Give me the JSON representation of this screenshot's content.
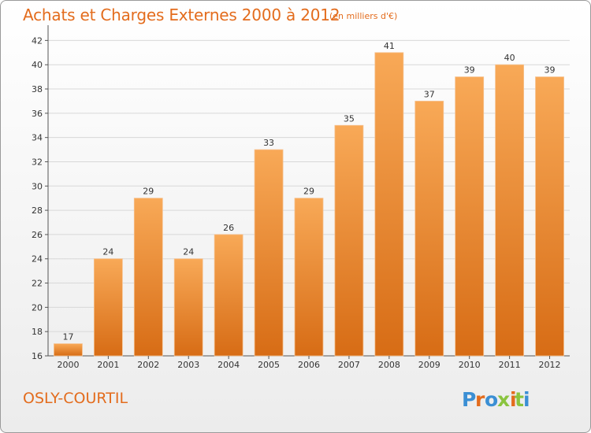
{
  "header": {
    "title": "Achats et Charges Externes 2000 à 2012",
    "subtitle": "(en milliers d'€)"
  },
  "footer": {
    "commune": "OSLY-COURTIL",
    "logo_text": "Proxiti"
  },
  "colors": {
    "title": "#e36c1d",
    "bar_light": "#f8a957",
    "bar_dark": "#d76c15",
    "grid": "#d8d8d8",
    "axis": "#555555",
    "logo": [
      "#3b8fd4",
      "#e36c1d",
      "#3b8fd4",
      "#8ac43f",
      "#e36c1d",
      "#8ac43f",
      "#3b8fd4"
    ]
  },
  "chart_data": {
    "type": "bar",
    "categories": [
      "2000",
      "2001",
      "2002",
      "2003",
      "2004",
      "2005",
      "2006",
      "2007",
      "2008",
      "2009",
      "2010",
      "2011",
      "2012"
    ],
    "values": [
      17,
      24,
      29,
      24,
      26,
      33,
      29,
      35,
      41,
      37,
      39,
      40,
      39
    ],
    "data_labels": [
      "17",
      "24",
      "29",
      "24",
      "26",
      "33",
      "29",
      "35",
      "41",
      "37",
      "39",
      "40",
      "39"
    ],
    "yticks": [
      "16",
      "18",
      "20",
      "22",
      "24",
      "26",
      "28",
      "30",
      "32",
      "34",
      "36",
      "38",
      "40",
      "42"
    ],
    "ylim": [
      16,
      43
    ],
    "grid": true,
    "legend": "none"
  }
}
